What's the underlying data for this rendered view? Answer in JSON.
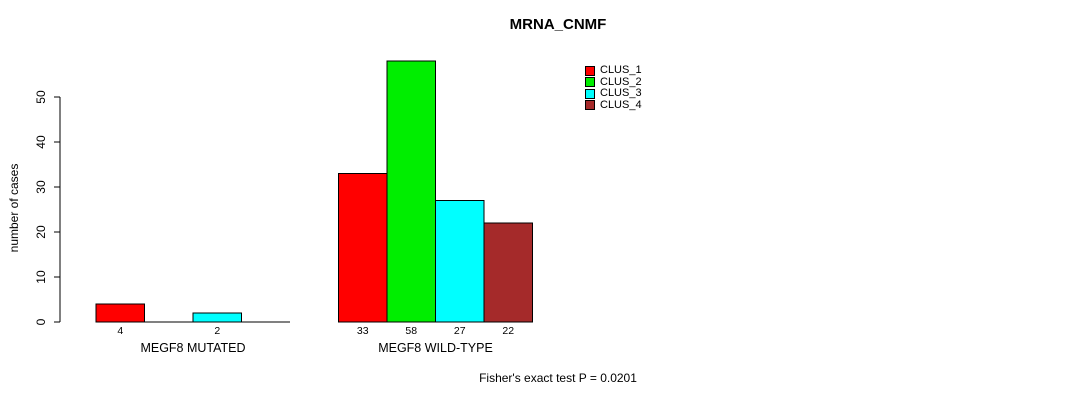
{
  "chart_data": {
    "type": "bar",
    "title": "MRNA_CNMF",
    "ylabel": "number of cases",
    "xlabel": "",
    "footer": "Fisher's exact test P = 0.0201",
    "categories": [
      "MEGF8 MUTATED",
      "MEGF8 WILD-TYPE"
    ],
    "series": [
      {
        "name": "CLUS_1",
        "color": "#FF0000",
        "values": [
          4,
          33
        ]
      },
      {
        "name": "CLUS_2",
        "color": "#00EE00",
        "values": [
          0,
          58
        ]
      },
      {
        "name": "CLUS_3",
        "color": "#00FFFF",
        "values": [
          2,
          27
        ]
      },
      {
        "name": "CLUS_4",
        "color": "#A52A2A",
        "values": [
          0,
          22
        ]
      }
    ],
    "yticks": [
      0,
      10,
      20,
      30,
      40,
      50
    ],
    "ylim": [
      0,
      58
    ],
    "grid": false,
    "legend_position": "top-right",
    "bar_border_color": "#000000",
    "axis_color": "#000000"
  }
}
